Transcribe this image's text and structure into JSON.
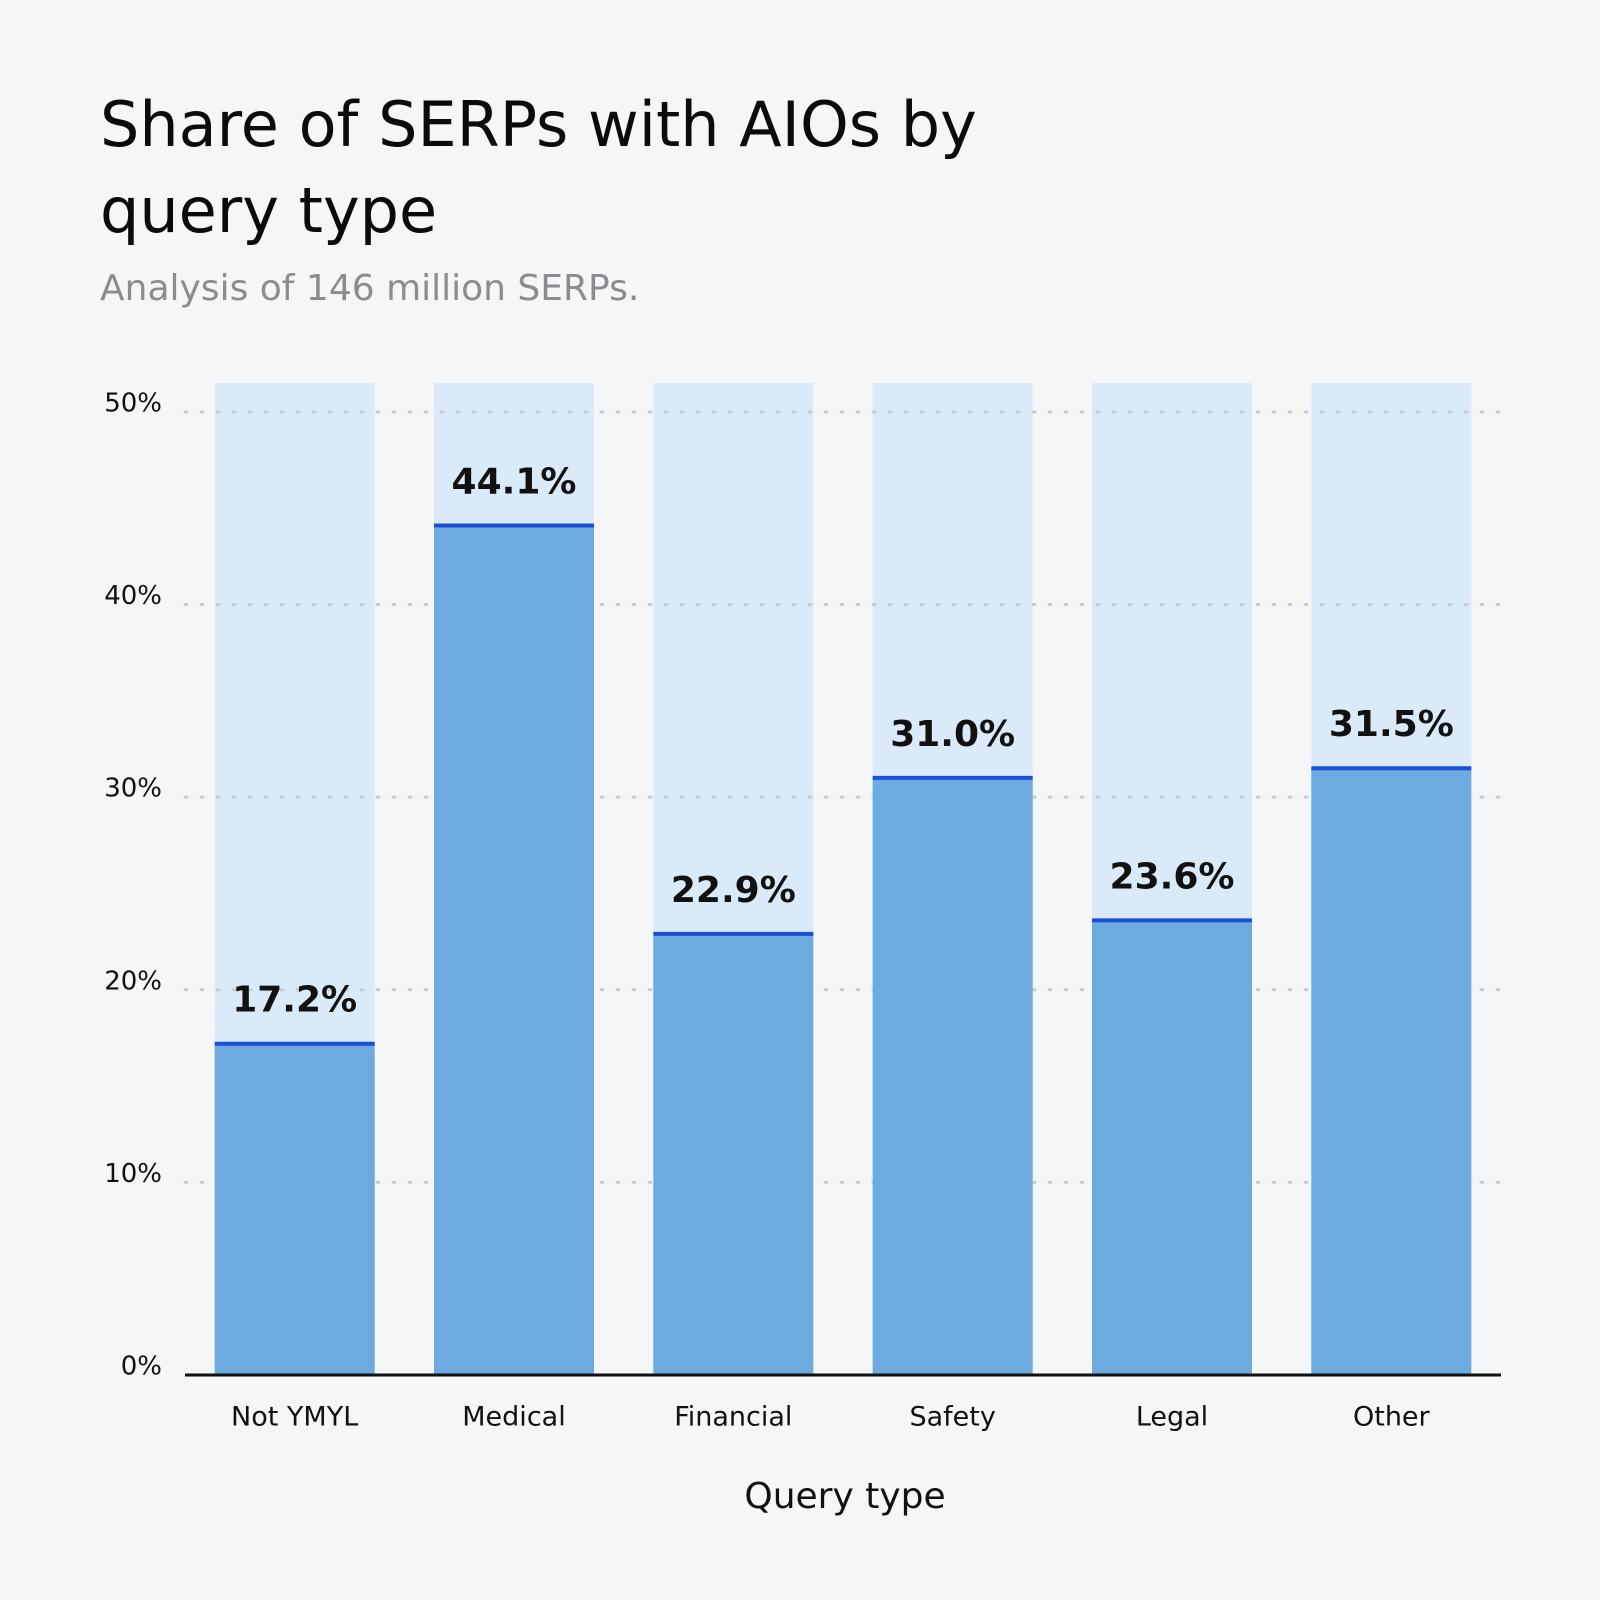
{
  "chart_data": {
    "type": "bar",
    "title": "Share of SERPs with AIOs by query type",
    "subtitle": "Analysis of 146 million SERPs.",
    "x_label": "Query type",
    "categories": [
      "Not YMYL",
      "Medical",
      "Financial",
      "Safety",
      "Legal",
      "Other"
    ],
    "values": [
      17.2,
      44.1,
      22.9,
      31.0,
      23.6,
      31.5
    ],
    "value_labels": [
      "17.2%",
      "44.1%",
      "22.9%",
      "31.0%",
      "23.6%",
      "31.5%"
    ],
    "color": "#6daae0",
    "ylim": [
      0,
      51.5
    ],
    "yticks": [
      {
        "value": 0,
        "label": "0%"
      },
      {
        "value": 10,
        "label": "10%"
      },
      {
        "value": 20,
        "label": "20%"
      },
      {
        "value": 30,
        "label": "30%"
      },
      {
        "value": 40,
        "label": "40%"
      },
      {
        "value": 50,
        "label": "50%"
      }
    ],
    "grid": true
  }
}
